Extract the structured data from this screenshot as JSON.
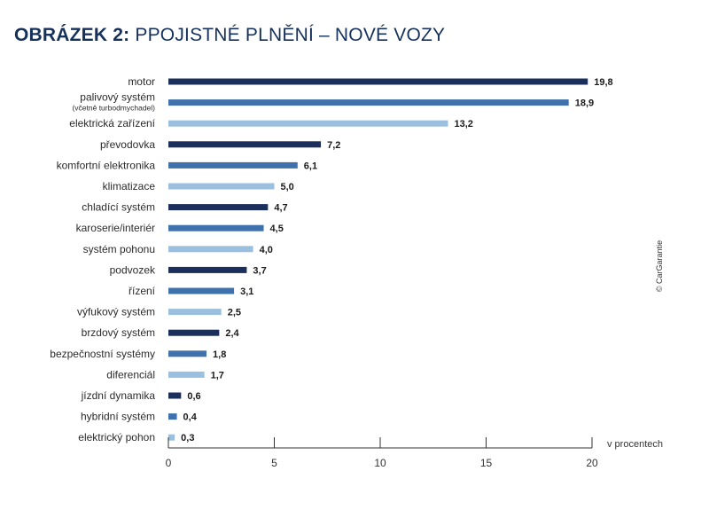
{
  "title": {
    "number": "OBRÁZEK 2:",
    "text": "PPOJISTNÉ PLNĚNÍ – NOVÉ VOZY"
  },
  "credit": "© CarGarantie",
  "colors": {
    "title": "#16325c",
    "palette": [
      "#1b2f5c",
      "#3f72ad",
      "#9bbfdf"
    ],
    "axis": "#333333"
  },
  "chart_data": {
    "type": "bar",
    "orientation": "horizontal",
    "categories": [
      "motor",
      "palivový systém",
      "elektrická zařízení",
      "převodovka",
      "komfortní elektronika",
      "klimatizace",
      "chladící systém",
      "karoserie/interiér",
      "systém pohonu",
      "podvozek",
      "řízení",
      "výfukový systém",
      "brzdový systém",
      "bezpečnostní systémy",
      "diferenciál",
      "jízdní dynamika",
      "hybridní systém",
      "elektrický pohon"
    ],
    "category_notes": [
      "",
      "(včetně turbodmychadel)",
      "",
      "",
      "",
      "",
      "",
      "",
      "",
      "",
      "",
      "",
      "",
      "",
      "",
      "",
      "",
      ""
    ],
    "values": [
      19.8,
      18.9,
      13.2,
      7.2,
      6.1,
      5.0,
      4.7,
      4.5,
      4.0,
      3.7,
      3.1,
      2.5,
      2.4,
      1.8,
      1.7,
      0.6,
      0.4,
      0.3
    ],
    "value_labels": [
      "19,8",
      "18,9",
      "13,2",
      "7,2",
      "6,1",
      "5,0",
      "4,7",
      "4,5",
      "4,0",
      "3,7",
      "3,1",
      "2,5",
      "2,4",
      "1,8",
      "1,7",
      "0,6",
      "0,4",
      "0,3"
    ],
    "color_cycle": [
      "dark",
      "medium",
      "light"
    ],
    "xlim": [
      0,
      20
    ],
    "xticks": [
      0,
      5,
      10,
      15,
      20
    ],
    "xtick_labels": [
      "0",
      "5",
      "10",
      "15",
      "20"
    ],
    "xlabel": "v procentech",
    "ylabel": "",
    "grid": false
  }
}
